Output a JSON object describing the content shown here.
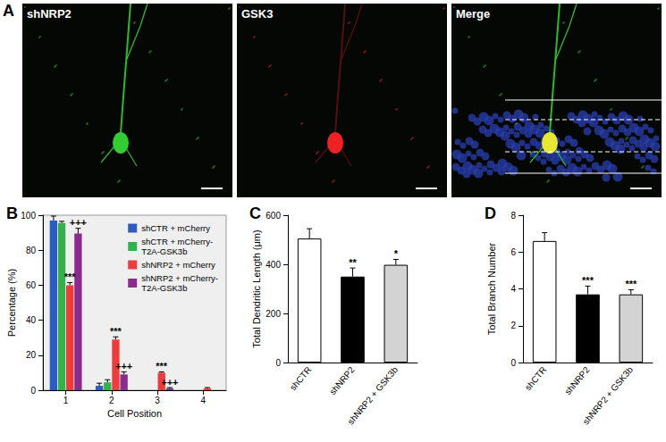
{
  "figure": {
    "title": "A",
    "images": [
      {
        "label": "shNRP2",
        "color": "#33cc33"
      },
      {
        "label": "GSK3",
        "color": "#ee2222"
      },
      {
        "label": "Merge",
        "color": "#e6e633"
      }
    ]
  },
  "chart_data": [
    {
      "type": "bar",
      "title": "B",
      "xlabel": "Cell Position",
      "ylabel": "Percentage (%)",
      "categories": [
        "1",
        "2",
        "3",
        "4"
      ],
      "series": [
        {
          "name": "shCTR + mCherry",
          "color": "#2e5bbf",
          "values": [
            97,
            2.5,
            0,
            0
          ],
          "errors": [
            2.5,
            1.5,
            0,
            0
          ]
        },
        {
          "name": "shCTR + mCherry-T2A-GSK3b",
          "color": "#33b24a",
          "values": [
            95.5,
            4.5,
            0,
            0
          ],
          "errors": [
            1,
            1.5,
            0,
            0
          ]
        },
        {
          "name": "shNRP2 + mCherry",
          "color": "#ee3b3b",
          "values": [
            60,
            29,
            10,
            1
          ],
          "errors": [
            1.5,
            1.5,
            0.5,
            0.5
          ]
        },
        {
          "name": "shNRP2 + mCherry-T2A-GSK3b",
          "color": "#8b2b8e",
          "values": [
            89.5,
            9,
            1,
            0
          ],
          "errors": [
            3,
            1.5,
            0.5,
            0
          ]
        }
      ],
      "annotations": [
        {
          "series": "shNRP2 + mCherry",
          "category": "1",
          "text": "***"
        },
        {
          "series": "shNRP2 + mCherry",
          "category": "2",
          "text": "***"
        },
        {
          "series": "shNRP2 + mCherry",
          "category": "3",
          "text": "***"
        },
        {
          "series": "shNRP2 + mCherry-T2A-GSK3b",
          "category": "1",
          "text": "+++"
        },
        {
          "series": "shNRP2 + mCherry-T2A-GSK3b",
          "category": "2",
          "text": "+++"
        },
        {
          "series": "shNRP2 + mCherry-T2A-GSK3b",
          "category": "3",
          "text": "+++"
        }
      ],
      "ylim": [
        0,
        100
      ],
      "yticks": [
        0,
        20,
        40,
        60,
        80,
        100
      ],
      "grid": false,
      "legend": "upper right"
    },
    {
      "type": "bar",
      "title": "C",
      "ylabel": "Total Dendritic Length (μm)",
      "categories": [
        "shCTR",
        "shNRP2",
        "shNRP2 + GSK3b"
      ],
      "values": [
        505,
        350,
        398
      ],
      "errors": [
        40,
        35,
        22
      ],
      "colors": [
        "#ffffff",
        "#000000",
        "#d3d3d3"
      ],
      "annotations": [
        {
          "category": "shNRP2",
          "text": "**"
        },
        {
          "category": "shNRP2 + GSK3b",
          "text": "*"
        }
      ],
      "ylim": [
        0,
        600
      ],
      "yticks": [
        0,
        200,
        400,
        600
      ],
      "grid": false
    },
    {
      "type": "bar",
      "title": "D",
      "ylabel": "Total Branch Number",
      "categories": [
        "shCTR",
        "shNRP2",
        "shNRP2 + GSK3b"
      ],
      "values": [
        6.6,
        3.7,
        3.7
      ],
      "errors": [
        0.45,
        0.45,
        0.25
      ],
      "colors": [
        "#ffffff",
        "#000000",
        "#d3d3d3"
      ],
      "annotations": [
        {
          "category": "shNRP2",
          "text": "***"
        },
        {
          "category": "shNRP2 + GSK3b",
          "text": "***"
        }
      ],
      "ylim": [
        0,
        8
      ],
      "yticks": [
        0,
        2,
        4,
        6,
        8
      ],
      "grid": false
    }
  ]
}
